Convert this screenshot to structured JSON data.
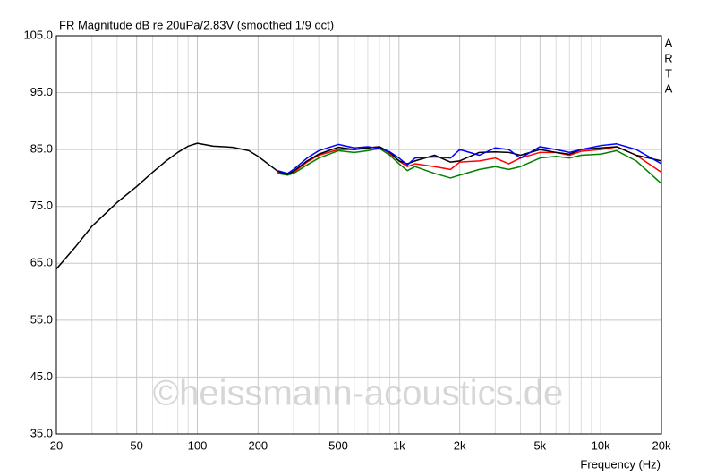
{
  "chart_data": {
    "type": "line",
    "title": "FR Magnitude dB re 20uPa/2.83V (smoothed 1/9 oct)",
    "x_label": "Frequency (Hz)",
    "side_label": [
      "A",
      "R",
      "T",
      "A"
    ],
    "watermark": "©heissmann-acoustics.de",
    "x_scale": "log",
    "grid": true,
    "xlim": [
      20,
      20000
    ],
    "ylim": [
      35,
      105
    ],
    "xticks": [
      20,
      50,
      100,
      200,
      500,
      {
        "value": 1000,
        "label": "1k"
      },
      {
        "value": 2000,
        "label": "2k"
      },
      {
        "value": 5000,
        "label": "5k"
      },
      {
        "value": 10000,
        "label": "10k"
      },
      {
        "value": 20000,
        "label": "20k"
      }
    ],
    "xminor": [
      30,
      40,
      60,
      70,
      80,
      90,
      300,
      400,
      600,
      700,
      800,
      900,
      3000,
      4000,
      6000,
      7000,
      8000,
      9000
    ],
    "yticks": [
      {
        "value": 35,
        "label": "35.0"
      },
      {
        "value": 45,
        "label": "45.0"
      },
      {
        "value": 55,
        "label": "55.0"
      },
      {
        "value": 65,
        "label": "65.0"
      },
      {
        "value": 75,
        "label": "75.0"
      },
      {
        "value": 85,
        "label": "85.0"
      },
      {
        "value": 95,
        "label": "95.0"
      },
      {
        "value": 105,
        "label": "105.0"
      }
    ],
    "x": [
      20,
      25,
      30,
      40,
      50,
      60,
      70,
      80,
      90,
      100,
      120,
      150,
      180,
      200,
      250,
      280,
      300,
      350,
      400,
      500,
      600,
      700,
      800,
      900,
      1000,
      1100,
      1200,
      1500,
      1800,
      2000,
      2500,
      3000,
      3500,
      4000,
      5000,
      6000,
      7000,
      8000,
      10000,
      12000,
      15000,
      20000
    ],
    "series": [
      {
        "color": "#008000",
        "values": [
          null,
          null,
          null,
          null,
          null,
          null,
          null,
          null,
          null,
          null,
          null,
          null,
          null,
          null,
          80.8,
          80.5,
          80.8,
          82.3,
          83.5,
          84.8,
          84.5,
          84.8,
          85.2,
          84,
          82.5,
          81.3,
          82,
          80.8,
          80,
          80.5,
          81.5,
          82,
          81.5,
          82,
          83.5,
          83.8,
          83.5,
          84,
          84.2,
          84.8,
          83,
          79
        ]
      },
      {
        "color": "#ff0000",
        "values": [
          null,
          null,
          null,
          null,
          null,
          null,
          null,
          null,
          null,
          null,
          null,
          null,
          null,
          null,
          81,
          80.7,
          81,
          82.8,
          84,
          85,
          85,
          85.3,
          85.5,
          84.3,
          83,
          82,
          82.5,
          82,
          81.5,
          82.8,
          83,
          83.5,
          82.5,
          83.5,
          84.5,
          84.5,
          84,
          84.7,
          85,
          85.5,
          84,
          81
        ]
      },
      {
        "color": "#000000",
        "values": [
          64,
          68,
          71.5,
          75.7,
          78.5,
          81,
          83,
          84.5,
          85.6,
          86.1,
          85.6,
          85.4,
          84.8,
          83.8,
          81.2,
          80.6,
          81.2,
          83,
          84.2,
          85.4,
          85,
          85.3,
          85.5,
          84.5,
          83,
          82.5,
          83,
          84,
          82.8,
          83,
          84.5,
          84.6,
          84.5,
          84,
          85,
          84.5,
          84.2,
          85,
          85.3,
          85.5,
          84,
          83
        ]
      },
      {
        "color": "#0000ff",
        "values": [
          null,
          null,
          null,
          null,
          null,
          null,
          null,
          null,
          null,
          null,
          null,
          null,
          null,
          null,
          81.3,
          80.8,
          81.5,
          83.5,
          84.8,
          85.9,
          85.3,
          85.5,
          85.2,
          84.6,
          83.5,
          82.3,
          83.5,
          83.7,
          83.5,
          85,
          84,
          85.3,
          85,
          83.5,
          85.5,
          85,
          84.5,
          85,
          85.7,
          86,
          85,
          82.5
        ]
      }
    ]
  }
}
